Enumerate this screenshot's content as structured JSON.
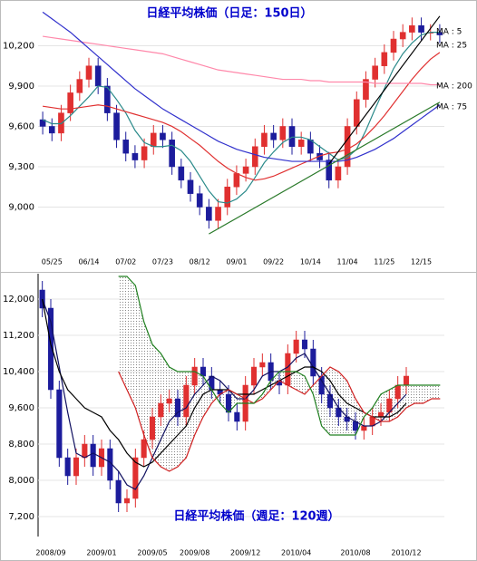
{
  "chart_data": [
    {
      "type": "candlestick",
      "title": "日経平均株価（日足：150日）",
      "categories": [
        null,
        "05/25",
        null,
        null,
        null,
        "06/14",
        null,
        null,
        null,
        "07/02",
        null,
        null,
        null,
        "07/23",
        null,
        null,
        null,
        "08/12",
        null,
        null,
        null,
        "09/01",
        null,
        null,
        null,
        "09/22",
        null,
        null,
        null,
        "10/14",
        null,
        null,
        null,
        "11/04",
        null,
        null,
        null,
        "11/25",
        null,
        null,
        null,
        "12/15",
        null,
        null
      ],
      "open": [
        9650,
        9600,
        9550,
        9700,
        9850,
        9950,
        10050,
        9900,
        9700,
        9500,
        9400,
        9350,
        9450,
        9550,
        9500,
        9300,
        9200,
        9100,
        9000,
        8900,
        9000,
        9150,
        9250,
        9300,
        9450,
        9550,
        9500,
        9600,
        9450,
        9500,
        9400,
        9350,
        9200,
        9300,
        9600,
        9800,
        9950,
        10050,
        10150,
        10250,
        10300,
        10350,
        10300,
        10300
      ],
      "high": [
        9710,
        9660,
        9760,
        9910,
        10010,
        10110,
        10110,
        9960,
        9760,
        9560,
        9460,
        9510,
        9610,
        9610,
        9560,
        9360,
        9260,
        9160,
        9060,
        9060,
        9210,
        9310,
        9360,
        9510,
        9610,
        9610,
        9660,
        9660,
        9560,
        9560,
        9460,
        9410,
        9360,
        9660,
        9860,
        10010,
        10110,
        10210,
        10310,
        10360,
        10410,
        10410,
        10360,
        10360
      ],
      "low": [
        9540,
        9490,
        9490,
        9640,
        9790,
        9890,
        9840,
        9640,
        9440,
        9340,
        9290,
        9290,
        9390,
        9440,
        9240,
        9140,
        9040,
        8940,
        8840,
        8840,
        8940,
        9090,
        9190,
        9240,
        9390,
        9440,
        9440,
        9390,
        9390,
        9340,
        9290,
        9140,
        9140,
        9240,
        9540,
        9740,
        9890,
        9990,
        10090,
        10190,
        10240,
        10240,
        10240,
        10220
      ],
      "close": [
        9600,
        9550,
        9700,
        9850,
        9950,
        10050,
        9900,
        9700,
        9500,
        9400,
        9350,
        9450,
        9550,
        9500,
        9300,
        9200,
        9100,
        9000,
        8900,
        9000,
        9150,
        9250,
        9300,
        9450,
        9550,
        9500,
        9600,
        9450,
        9500,
        9400,
        9350,
        9200,
        9300,
        9600,
        9800,
        9950,
        10050,
        10150,
        10250,
        10300,
        10350,
        10300,
        10300,
        10280
      ],
      "up_color": "#e03030",
      "down_color": "#1c1c9c",
      "series": [
        {
          "name": "MA : 5",
          "color": "#2a8a8a",
          "values": [
            9650,
            9620,
            9620,
            9680,
            9750,
            9820,
            9900,
            9890,
            9800,
            9700,
            9570,
            9480,
            9450,
            9450,
            9460,
            9420,
            9340,
            9230,
            9120,
            9040,
            9030,
            9060,
            9120,
            9220,
            9330,
            9410,
            9480,
            9520,
            9520,
            9500,
            9450,
            9400,
            9350,
            9370,
            9430,
            9570,
            9730,
            9880,
            10030,
            10140,
            10220,
            10280,
            10300,
            10300
          ]
        },
        {
          "name": "MA : 25",
          "color": "#e03030",
          "values": [
            9750,
            9740,
            9730,
            9730,
            9740,
            9750,
            9760,
            9750,
            9730,
            9710,
            9690,
            9670,
            9650,
            9630,
            9600,
            9560,
            9510,
            9460,
            9400,
            9340,
            9290,
            9250,
            9220,
            9200,
            9210,
            9230,
            9260,
            9290,
            9320,
            9350,
            9380,
            9400,
            9410,
            9430,
            9470,
            9530,
            9600,
            9680,
            9770,
            9860,
            9950,
            10030,
            10100,
            10150
          ]
        },
        {
          "name": "MA : 200",
          "color": "#ff88aa",
          "values": [
            10270,
            10260,
            10250,
            10240,
            10230,
            10220,
            10210,
            10200,
            10190,
            10180,
            10170,
            10160,
            10150,
            10140,
            10120,
            10100,
            10080,
            10060,
            10040,
            10020,
            10010,
            10000,
            9990,
            9980,
            9970,
            9960,
            9950,
            9950,
            9950,
            9940,
            9940,
            9930,
            9930,
            9930,
            9930,
            9930,
            9920,
            9920,
            9920,
            9920,
            9920,
            9920,
            9910,
            9910
          ]
        },
        {
          "name": "MA : 75",
          "color": "#3030cc",
          "values": [
            10450,
            10400,
            10350,
            10300,
            10240,
            10180,
            10120,
            10060,
            10000,
            9940,
            9880,
            9830,
            9780,
            9730,
            9690,
            9650,
            9610,
            9570,
            9530,
            9490,
            9460,
            9430,
            9410,
            9390,
            9370,
            9360,
            9350,
            9340,
            9340,
            9340,
            9340,
            9340,
            9340,
            9350,
            9370,
            9400,
            9430,
            9470,
            9510,
            9560,
            9610,
            9660,
            9710,
            9760
          ]
        }
      ],
      "trend_lines": [
        {
          "color": "#2a7a2a",
          "x": [
            18,
            43
          ],
          "y": [
            8800,
            9780
          ]
        },
        {
          "color": "#000000",
          "x": [
            31,
            43
          ],
          "y": [
            9320,
            10420
          ]
        }
      ],
      "ylim": [
        8700,
        10540
      ],
      "yticks": [
        {
          "value": 9000,
          "label": "9,000"
        },
        {
          "value": 9300,
          "label": "9,300"
        },
        {
          "value": 9600,
          "label": "9,600"
        },
        {
          "value": 9900,
          "label": "9,900"
        },
        {
          "value": 10200,
          "label": "10,200"
        }
      ],
      "grid": true
    },
    {
      "type": "candlestick",
      "title": "日経平均株価（週足：120週）",
      "categories": [
        null,
        "2008/09",
        null,
        null,
        null,
        null,
        null,
        "2009/01",
        null,
        null,
        null,
        null,
        null,
        "2009/05",
        null,
        null,
        null,
        null,
        "2009/08",
        null,
        null,
        null,
        null,
        null,
        "2009/12",
        null,
        null,
        null,
        null,
        null,
        "2010/04",
        null,
        null,
        null,
        null,
        null,
        null,
        "2010/08",
        null,
        null,
        null,
        null,
        null,
        "2010/12",
        null,
        null,
        null,
        null
      ],
      "open": [
        12200,
        11800,
        10000,
        8500,
        8100,
        8500,
        8800,
        8300,
        8700,
        8000,
        7500,
        7600,
        8500,
        8900,
        9400,
        9700,
        9800,
        9400,
        10100,
        10500,
        10300,
        10000,
        9900,
        9500,
        9300,
        10100,
        10500,
        10600,
        10200,
        10100,
        10800,
        11100,
        10900,
        10300,
        9900,
        9600,
        9400,
        9300,
        9100,
        9200,
        9400,
        9500,
        9800,
        10100,
        null,
        null,
        null,
        null
      ],
      "high": [
        12400,
        12000,
        10200,
        8700,
        8700,
        9000,
        9000,
        8900,
        8900,
        8200,
        7800,
        8700,
        9100,
        9600,
        9900,
        10000,
        10000,
        10300,
        10700,
        10700,
        10500,
        10200,
        10100,
        9700,
        10300,
        10700,
        10800,
        10800,
        10400,
        11000,
        11300,
        11300,
        11100,
        10500,
        10100,
        9800,
        9600,
        9500,
        9400,
        9600,
        9700,
        10000,
        10300,
        10500,
        null,
        null,
        null,
        null
      ],
      "low": [
        11600,
        9800,
        8300,
        7900,
        7900,
        8300,
        8100,
        8100,
        7800,
        7300,
        7300,
        7400,
        8300,
        8700,
        9200,
        9500,
        9200,
        9200,
        9900,
        10100,
        9800,
        9700,
        9300,
        9100,
        9100,
        9900,
        10300,
        10000,
        9900,
        9900,
        10600,
        10700,
        10100,
        9700,
        9400,
        9200,
        9100,
        8900,
        8900,
        9000,
        9200,
        9300,
        9600,
        9900,
        null,
        null,
        null,
        null
      ],
      "close": [
        11800,
        10000,
        8500,
        8100,
        8500,
        8800,
        8300,
        8700,
        8000,
        7500,
        7600,
        8500,
        8900,
        9400,
        9700,
        9800,
        9400,
        10100,
        10500,
        10300,
        10000,
        9900,
        9500,
        9300,
        10100,
        10500,
        10600,
        10200,
        10100,
        10800,
        11100,
        10900,
        10300,
        9900,
        9600,
        9400,
        9300,
        9100,
        9200,
        9400,
        9500,
        9800,
        10100,
        10300,
        null,
        null,
        null,
        null
      ],
      "up_color": "#e03030",
      "down_color": "#1c1c9c",
      "cloud_color": "#888888",
      "series": [
        {
          "color": "#101060",
          "values": [
            12000,
            11500,
            10500,
            9500,
            8600,
            8500,
            8600,
            8500,
            8400,
            8200,
            7900,
            7800,
            8100,
            8500,
            8900,
            9300,
            9500,
            9600,
            9900,
            10100,
            10300,
            10200,
            10000,
            9800,
            9800,
            10000,
            10300,
            10400,
            10400,
            10500,
            10700,
            10800,
            10500,
            10200,
            9900,
            9600,
            9400,
            9300,
            9200,
            9200,
            9300,
            9500,
            9700,
            9900,
            null,
            null,
            null,
            null
          ]
        },
        {
          "color": "#000000",
          "values": [
            12000,
            11000,
            10400,
            10000,
            9800,
            9600,
            9500,
            9400,
            9100,
            8900,
            8600,
            8400,
            8300,
            8400,
            8600,
            8800,
            9000,
            9200,
            9600,
            9900,
            10000,
            10000,
            10000,
            9900,
            9900,
            9900,
            10000,
            10100,
            10200,
            10300,
            10400,
            10500,
            10500,
            10400,
            10200,
            9900,
            9700,
            9600,
            9500,
            9400,
            9400,
            9400,
            9500,
            9700,
            null,
            null,
            null,
            null
          ]
        },
        {
          "color": "#d02020",
          "cloud": true,
          "values": [
            null,
            null,
            null,
            null,
            null,
            null,
            null,
            null,
            null,
            10400,
            10000,
            9600,
            9000,
            8500,
            8300,
            8200,
            8300,
            8500,
            9000,
            9400,
            9700,
            9900,
            10000,
            9900,
            9800,
            9700,
            9800,
            10000,
            10200,
            10100,
            10000,
            9900,
            10100,
            10300,
            10500,
            10400,
            10200,
            9800,
            9500,
            9400,
            9300,
            9300,
            9400,
            9600,
            9700,
            9700,
            9800,
            9800
          ]
        },
        {
          "color": "#208020",
          "cloud": true,
          "values": [
            null,
            null,
            null,
            null,
            null,
            null,
            null,
            null,
            null,
            12500,
            12500,
            12300,
            11500,
            11000,
            10800,
            10500,
            10400,
            10400,
            10400,
            10300,
            10000,
            9700,
            9500,
            9700,
            9700,
            9700,
            9900,
            10200,
            10400,
            10400,
            10400,
            10300,
            9900,
            9200,
            9000,
            9000,
            9000,
            9000,
            9400,
            9600,
            9900,
            10000,
            10100,
            10100,
            10100,
            10100,
            10100,
            10100
          ]
        }
      ],
      "ylim": [
        6800,
        12600
      ],
      "yticks": [
        {
          "value": 7200,
          "label": "7,200"
        },
        {
          "value": 8000,
          "label": "8,000"
        },
        {
          "value": 8800,
          "label": "8,800"
        },
        {
          "value": 9600,
          "label": "9,600"
        },
        {
          "value": 10400,
          "label": "10,400"
        },
        {
          "value": 11200,
          "label": "11,200"
        },
        {
          "value": 12000,
          "label": "12,000"
        }
      ],
      "grid": true
    }
  ]
}
